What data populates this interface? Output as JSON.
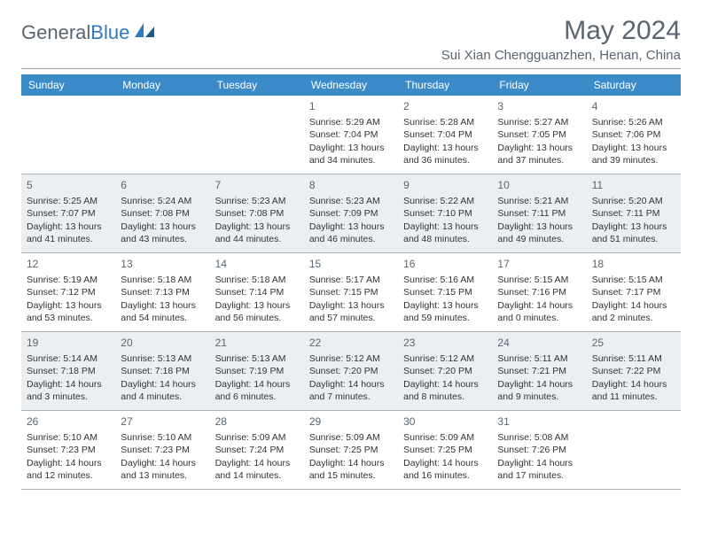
{
  "logo": {
    "text_gray": "General",
    "text_blue": "Blue"
  },
  "title": "May 2024",
  "location": "Sui Xian Chengguanzhen, Henan, China",
  "colors": {
    "header_bg": "#3b8bc9",
    "header_text": "#ffffff",
    "shaded_bg": "#eceff2",
    "text": "#333333",
    "muted": "#5a6570",
    "divider": "#a8b0b8"
  },
  "weekdays": [
    "Sunday",
    "Monday",
    "Tuesday",
    "Wednesday",
    "Thursday",
    "Friday",
    "Saturday"
  ],
  "weeks": [
    {
      "shaded": false,
      "days": [
        null,
        null,
        null,
        {
          "n": "1",
          "sr": "5:29 AM",
          "ss": "7:04 PM",
          "dl": "13 hours and 34 minutes."
        },
        {
          "n": "2",
          "sr": "5:28 AM",
          "ss": "7:04 PM",
          "dl": "13 hours and 36 minutes."
        },
        {
          "n": "3",
          "sr": "5:27 AM",
          "ss": "7:05 PM",
          "dl": "13 hours and 37 minutes."
        },
        {
          "n": "4",
          "sr": "5:26 AM",
          "ss": "7:06 PM",
          "dl": "13 hours and 39 minutes."
        }
      ]
    },
    {
      "shaded": true,
      "days": [
        {
          "n": "5",
          "sr": "5:25 AM",
          "ss": "7:07 PM",
          "dl": "13 hours and 41 minutes."
        },
        {
          "n": "6",
          "sr": "5:24 AM",
          "ss": "7:08 PM",
          "dl": "13 hours and 43 minutes."
        },
        {
          "n": "7",
          "sr": "5:23 AM",
          "ss": "7:08 PM",
          "dl": "13 hours and 44 minutes."
        },
        {
          "n": "8",
          "sr": "5:23 AM",
          "ss": "7:09 PM",
          "dl": "13 hours and 46 minutes."
        },
        {
          "n": "9",
          "sr": "5:22 AM",
          "ss": "7:10 PM",
          "dl": "13 hours and 48 minutes."
        },
        {
          "n": "10",
          "sr": "5:21 AM",
          "ss": "7:11 PM",
          "dl": "13 hours and 49 minutes."
        },
        {
          "n": "11",
          "sr": "5:20 AM",
          "ss": "7:11 PM",
          "dl": "13 hours and 51 minutes."
        }
      ]
    },
    {
      "shaded": false,
      "days": [
        {
          "n": "12",
          "sr": "5:19 AM",
          "ss": "7:12 PM",
          "dl": "13 hours and 53 minutes."
        },
        {
          "n": "13",
          "sr": "5:18 AM",
          "ss": "7:13 PM",
          "dl": "13 hours and 54 minutes."
        },
        {
          "n": "14",
          "sr": "5:18 AM",
          "ss": "7:14 PM",
          "dl": "13 hours and 56 minutes."
        },
        {
          "n": "15",
          "sr": "5:17 AM",
          "ss": "7:15 PM",
          "dl": "13 hours and 57 minutes."
        },
        {
          "n": "16",
          "sr": "5:16 AM",
          "ss": "7:15 PM",
          "dl": "13 hours and 59 minutes."
        },
        {
          "n": "17",
          "sr": "5:15 AM",
          "ss": "7:16 PM",
          "dl": "14 hours and 0 minutes."
        },
        {
          "n": "18",
          "sr": "5:15 AM",
          "ss": "7:17 PM",
          "dl": "14 hours and 2 minutes."
        }
      ]
    },
    {
      "shaded": true,
      "days": [
        {
          "n": "19",
          "sr": "5:14 AM",
          "ss": "7:18 PM",
          "dl": "14 hours and 3 minutes."
        },
        {
          "n": "20",
          "sr": "5:13 AM",
          "ss": "7:18 PM",
          "dl": "14 hours and 4 minutes."
        },
        {
          "n": "21",
          "sr": "5:13 AM",
          "ss": "7:19 PM",
          "dl": "14 hours and 6 minutes."
        },
        {
          "n": "22",
          "sr": "5:12 AM",
          "ss": "7:20 PM",
          "dl": "14 hours and 7 minutes."
        },
        {
          "n": "23",
          "sr": "5:12 AM",
          "ss": "7:20 PM",
          "dl": "14 hours and 8 minutes."
        },
        {
          "n": "24",
          "sr": "5:11 AM",
          "ss": "7:21 PM",
          "dl": "14 hours and 9 minutes."
        },
        {
          "n": "25",
          "sr": "5:11 AM",
          "ss": "7:22 PM",
          "dl": "14 hours and 11 minutes."
        }
      ]
    },
    {
      "shaded": false,
      "days": [
        {
          "n": "26",
          "sr": "5:10 AM",
          "ss": "7:23 PM",
          "dl": "14 hours and 12 minutes."
        },
        {
          "n": "27",
          "sr": "5:10 AM",
          "ss": "7:23 PM",
          "dl": "14 hours and 13 minutes."
        },
        {
          "n": "28",
          "sr": "5:09 AM",
          "ss": "7:24 PM",
          "dl": "14 hours and 14 minutes."
        },
        {
          "n": "29",
          "sr": "5:09 AM",
          "ss": "7:25 PM",
          "dl": "14 hours and 15 minutes."
        },
        {
          "n": "30",
          "sr": "5:09 AM",
          "ss": "7:25 PM",
          "dl": "14 hours and 16 minutes."
        },
        {
          "n": "31",
          "sr": "5:08 AM",
          "ss": "7:26 PM",
          "dl": "14 hours and 17 minutes."
        },
        null
      ]
    }
  ]
}
